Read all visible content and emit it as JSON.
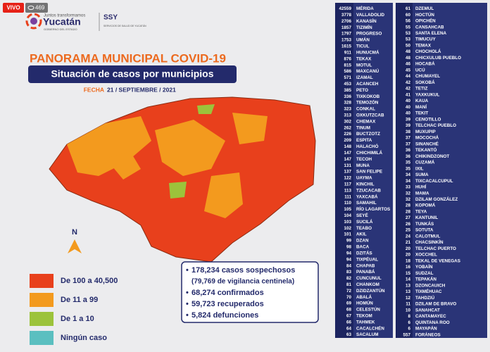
{
  "stream": {
    "live": "VIVO",
    "viewers": 469
  },
  "header": {
    "tagline": "Juntos transformamos",
    "state": "Yucatán",
    "government": "GOBIERNO DEL ESTADO",
    "agency": "SSY",
    "agency_full": "SERVICIOS DE SALUD DE YUCATÁN"
  },
  "title": "PANORAMA MUNICIPAL COVID-19",
  "subtitle": "Situación de casos por municipios",
  "date_label": "FECHA",
  "date": "21 / SEPTIEMBRE / 2021",
  "compass": "N",
  "legend": [
    {
      "label": "De 100 a 40,500",
      "color": "#e8401c"
    },
    {
      "label": "De 11 a 99",
      "color": "#f39a1e"
    },
    {
      "label": "De 1 a 10",
      "color": "#9cc33b"
    },
    {
      "label": "Ningún caso",
      "color": "#5bbfc0"
    }
  ],
  "summary": [
    "178,234 casos sospechosos",
    "(79,769 de vigilancia centinela)",
    "68,274 confirmados",
    "59,723 recuperados",
    "5,824 defunciones"
  ],
  "municipalities": [
    [
      {
        "count": 42559,
        "name": "MÉRIDA"
      },
      {
        "count": 3778,
        "name": "VALLADOLID"
      },
      {
        "count": 2706,
        "name": "KANASÍN"
      },
      {
        "count": 1857,
        "name": "TIZIMÍN"
      },
      {
        "count": 1797,
        "name": "PROGRESO"
      },
      {
        "count": 1753,
        "name": "UMÁN"
      },
      {
        "count": 1615,
        "name": "TICUL"
      },
      {
        "count": 911,
        "name": "HUNUCMÁ"
      },
      {
        "count": 876,
        "name": "TEKAX"
      },
      {
        "count": 815,
        "name": "MOTUL"
      },
      {
        "count": 586,
        "name": "MAXCANÚ"
      },
      {
        "count": 571,
        "name": "IZAMAL"
      },
      {
        "count": 453,
        "name": "ACANCEH"
      },
      {
        "count": 385,
        "name": "PETO"
      },
      {
        "count": 336,
        "name": "TIXKOKOB"
      },
      {
        "count": 328,
        "name": "TEMOZÓN"
      },
      {
        "count": 323,
        "name": "CONKAL"
      },
      {
        "count": 313,
        "name": "OXKUTZCAB"
      },
      {
        "count": 302,
        "name": "CHEMAX"
      },
      {
        "count": 262,
        "name": "TINUM"
      },
      {
        "count": 226,
        "name": "BUCTZOTZ"
      },
      {
        "count": 209,
        "name": "ESPITA"
      },
      {
        "count": 148,
        "name": "HALACHÓ"
      },
      {
        "count": 147,
        "name": "CHICHIMILÁ"
      },
      {
        "count": 147,
        "name": "TECOH"
      },
      {
        "count": 131,
        "name": "MUNA"
      },
      {
        "count": 137,
        "name": "SAN FELIPE"
      },
      {
        "count": 122,
        "name": "UAYMA"
      },
      {
        "count": 117,
        "name": "KINCHIL"
      },
      {
        "count": 113,
        "name": "TZUCACAB"
      },
      {
        "count": 111,
        "name": "YAXCABÁ"
      },
      {
        "count": 110,
        "name": "SAMAHIL"
      },
      {
        "count": 105,
        "name": "RÍO LAGARTOS"
      },
      {
        "count": 104,
        "name": "SEYÉ"
      },
      {
        "count": 103,
        "name": "SUCILÁ"
      },
      {
        "count": 102,
        "name": "TEABO"
      },
      {
        "count": 101,
        "name": "AKIL"
      },
      {
        "count": 99,
        "name": "DZAN"
      },
      {
        "count": 98,
        "name": "BACA"
      },
      {
        "count": 94,
        "name": "DZITÁS"
      },
      {
        "count": 94,
        "name": "TIXPÉUAL"
      },
      {
        "count": 84,
        "name": "CHAPAB"
      },
      {
        "count": 83,
        "name": "PANABÁ"
      },
      {
        "count": 82,
        "name": "CUNCUNUL"
      },
      {
        "count": 81,
        "name": "CHANKOM"
      },
      {
        "count": 72,
        "name": "DZIDZANTÚN"
      },
      {
        "count": 70,
        "name": "ABALÁ"
      },
      {
        "count": 69,
        "name": "HOMÚN"
      },
      {
        "count": 68,
        "name": "CELESTÚN"
      },
      {
        "count": 67,
        "name": "TEKOM"
      },
      {
        "count": 66,
        "name": "TAHMEK"
      },
      {
        "count": 64,
        "name": "CACALCHÉN"
      },
      {
        "count": 63,
        "name": "SACALUM"
      }
    ],
    [
      {
        "count": 61,
        "name": "DZEMUL"
      },
      {
        "count": 60,
        "name": "HOCTÚN"
      },
      {
        "count": 56,
        "name": "OPICHÉN"
      },
      {
        "count": 55,
        "name": "CANSAHCAB"
      },
      {
        "count": 53,
        "name": "SANTA ELENA"
      },
      {
        "count": 53,
        "name": "TIMUCUY"
      },
      {
        "count": 50,
        "name": "TEMAX"
      },
      {
        "count": 48,
        "name": "CHOCHOLÁ"
      },
      {
        "count": 48,
        "name": "CHICXULUB PUEBLO"
      },
      {
        "count": 46,
        "name": "HOCABÁ"
      },
      {
        "count": 45,
        "name": "UCÚ"
      },
      {
        "count": 44,
        "name": "CHUMAYEL"
      },
      {
        "count": 42,
        "name": "SOKOBÁ"
      },
      {
        "count": 42,
        "name": "TETIZ"
      },
      {
        "count": 41,
        "name": "YAXKUKUL"
      },
      {
        "count": 40,
        "name": "KAUA"
      },
      {
        "count": 40,
        "name": "MANÍ"
      },
      {
        "count": 40,
        "name": "TEKIT"
      },
      {
        "count": 39,
        "name": "CENOTILLO"
      },
      {
        "count": 39,
        "name": "TELCHAC PUEBLO"
      },
      {
        "count": 38,
        "name": "MUXUPIP"
      },
      {
        "count": 37,
        "name": "MOCOCHÁ"
      },
      {
        "count": 37,
        "name": "SINANCHÉ"
      },
      {
        "count": 36,
        "name": "TEKANTÓ"
      },
      {
        "count": 36,
        "name": "CHIKINDZONOT"
      },
      {
        "count": 35,
        "name": "CUZAMÁ"
      },
      {
        "count": 35,
        "name": "IXIL"
      },
      {
        "count": 34,
        "name": "SUMA"
      },
      {
        "count": 34,
        "name": "TIXCACALCUPUL"
      },
      {
        "count": 33,
        "name": "HUHÍ"
      },
      {
        "count": 32,
        "name": "MAMA"
      },
      {
        "count": 32,
        "name": "DZILAM GONZÁLEZ"
      },
      {
        "count": 28,
        "name": "KOPOMÁ"
      },
      {
        "count": 28,
        "name": "TEYA"
      },
      {
        "count": 27,
        "name": "KANTUNIL"
      },
      {
        "count": 26,
        "name": "TUNKÁS"
      },
      {
        "count": 25,
        "name": "SOTUTA"
      },
      {
        "count": 24,
        "name": "CALOTMUL"
      },
      {
        "count": 21,
        "name": "CHACSINKÍN"
      },
      {
        "count": 20,
        "name": "TELCHAC PUERTO"
      },
      {
        "count": 20,
        "name": "XOCCHEL"
      },
      {
        "count": 18,
        "name": "TEKAL DE VENEGAS"
      },
      {
        "count": 16,
        "name": "YOBAÍN"
      },
      {
        "count": 15,
        "name": "SUDZAL"
      },
      {
        "count": 14,
        "name": "TEPAKÁN"
      },
      {
        "count": 13,
        "name": "DZONCAUICH"
      },
      {
        "count": 13,
        "name": "TIXMÉHUAC"
      },
      {
        "count": 12,
        "name": "TAHDZIÚ"
      },
      {
        "count": 11,
        "name": "DZILAM DE BRAVO"
      },
      {
        "count": 10,
        "name": "SANAHCAT"
      },
      {
        "count": 8,
        "name": "CANTAMAYEC"
      },
      {
        "count": 6,
        "name": "QUINTANA ROO"
      },
      {
        "count": 6,
        "name": "MAYAPÁN"
      },
      {
        "count": 557,
        "name": "FORÁNEOS"
      }
    ]
  ]
}
